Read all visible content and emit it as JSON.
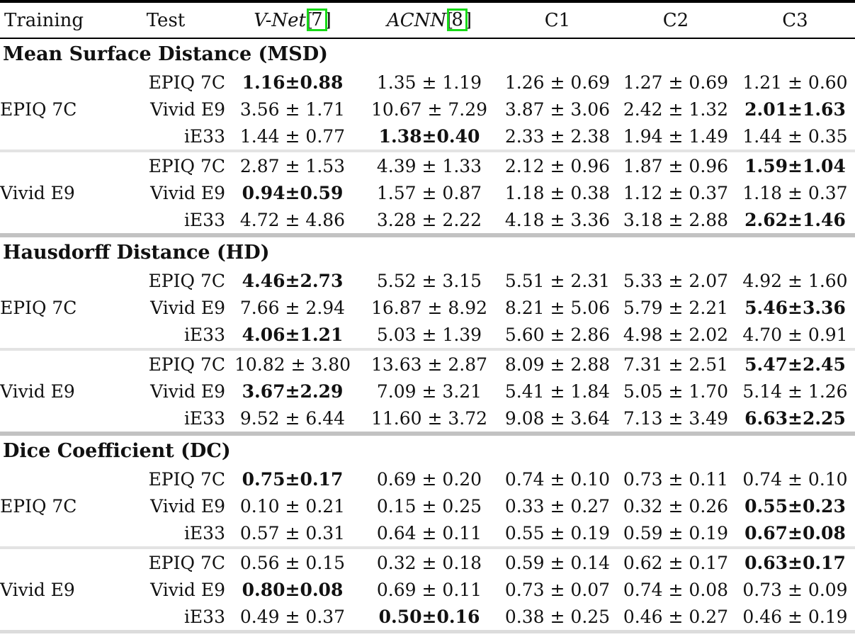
{
  "header": {
    "training": "Training",
    "test": "Test",
    "methods": {
      "vnet": {
        "name": "V-Net",
        "cite": "7"
      },
      "acnn": {
        "name": "ACNN",
        "cite": "8"
      }
    },
    "c1": "C1",
    "c2": "C2",
    "c3": "C3"
  },
  "colors": {
    "citation_box_green": "#17da17",
    "header_rule_black": "#000000",
    "block_separator_gray": "#e3e3e3",
    "section_separator_gray": "#c2c2c2",
    "bottom_rule_gray": "#dcdcdc"
  },
  "sections": [
    {
      "title": "Mean Surface Distance (MSD)",
      "blocks": [
        {
          "training": "EPIQ 7C",
          "rows": [
            {
              "test": "EPIQ 7C",
              "values": [
                {
                  "text": "1.16±0.88",
                  "bold": true
                },
                {
                  "text": "1.35 ± 1.19",
                  "bold": false
                },
                {
                  "text": "1.26 ± 0.69",
                  "bold": false
                },
                {
                  "text": "1.27 ± 0.69",
                  "bold": false
                },
                {
                  "text": "1.21 ± 0.60",
                  "bold": false
                }
              ]
            },
            {
              "test": "Vivid E9",
              "values": [
                {
                  "text": "3.56 ± 1.71",
                  "bold": false
                },
                {
                  "text": "10.67 ± 7.29",
                  "bold": false
                },
                {
                  "text": "3.87 ± 3.06",
                  "bold": false
                },
                {
                  "text": "2.42 ± 1.32",
                  "bold": false
                },
                {
                  "text": "2.01±1.63",
                  "bold": true
                }
              ]
            },
            {
              "test": "iE33",
              "values": [
                {
                  "text": "1.44 ± 0.77",
                  "bold": false
                },
                {
                  "text": "1.38±0.40",
                  "bold": true
                },
                {
                  "text": "2.33 ± 2.38",
                  "bold": false
                },
                {
                  "text": "1.94 ± 1.49",
                  "bold": false
                },
                {
                  "text": "1.44 ± 0.35",
                  "bold": false
                }
              ]
            }
          ]
        },
        {
          "training": "Vivid E9",
          "rows": [
            {
              "test": "EPIQ 7C",
              "values": [
                {
                  "text": "2.87 ± 1.53",
                  "bold": false
                },
                {
                  "text": "4.39 ± 1.33",
                  "bold": false
                },
                {
                  "text": "2.12 ± 0.96",
                  "bold": false
                },
                {
                  "text": "1.87 ± 0.96",
                  "bold": false
                },
                {
                  "text": "1.59±1.04",
                  "bold": true
                }
              ]
            },
            {
              "test": "Vivid E9",
              "values": [
                {
                  "text": "0.94±0.59",
                  "bold": true
                },
                {
                  "text": "1.57 ± 0.87",
                  "bold": false
                },
                {
                  "text": "1.18 ± 0.38",
                  "bold": false
                },
                {
                  "text": "1.12 ± 0.37",
                  "bold": false
                },
                {
                  "text": "1.18 ± 0.37",
                  "bold": false
                }
              ]
            },
            {
              "test": "iE33",
              "values": [
                {
                  "text": "4.72 ± 4.86",
                  "bold": false
                },
                {
                  "text": "3.28 ± 2.22",
                  "bold": false
                },
                {
                  "text": "4.18 ± 3.36",
                  "bold": false
                },
                {
                  "text": "3.18 ± 2.88",
                  "bold": false
                },
                {
                  "text": "2.62±1.46",
                  "bold": true
                }
              ]
            }
          ]
        }
      ]
    },
    {
      "title": "Hausdorff Distance (HD)",
      "blocks": [
        {
          "training": "EPIQ 7C",
          "rows": [
            {
              "test": "EPIQ 7C",
              "values": [
                {
                  "text": "4.46±2.73",
                  "bold": true
                },
                {
                  "text": "5.52 ± 3.15",
                  "bold": false
                },
                {
                  "text": "5.51 ± 2.31",
                  "bold": false
                },
                {
                  "text": "5.33 ± 2.07",
                  "bold": false
                },
                {
                  "text": "4.92 ± 1.60",
                  "bold": false
                }
              ]
            },
            {
              "test": "Vivid E9",
              "values": [
                {
                  "text": "7.66 ± 2.94",
                  "bold": false
                },
                {
                  "text": "16.87 ± 8.92",
                  "bold": false
                },
                {
                  "text": "8.21 ± 5.06",
                  "bold": false
                },
                {
                  "text": "5.79 ± 2.21",
                  "bold": false
                },
                {
                  "text": "5.46±3.36",
                  "bold": true
                }
              ]
            },
            {
              "test": "iE33",
              "values": [
                {
                  "text": "4.06±1.21",
                  "bold": true
                },
                {
                  "text": "5.03 ± 1.39",
                  "bold": false
                },
                {
                  "text": "5.60 ± 2.86",
                  "bold": false
                },
                {
                  "text": "4.98 ± 2.02",
                  "bold": false
                },
                {
                  "text": "4.70 ± 0.91",
                  "bold": false
                }
              ]
            }
          ]
        },
        {
          "training": "Vivid E9",
          "rows": [
            {
              "test": "EPIQ 7C",
              "values": [
                {
                  "text": "10.82 ± 3.80",
                  "bold": false
                },
                {
                  "text": "13.63 ± 2.87",
                  "bold": false
                },
                {
                  "text": "8.09 ± 2.88",
                  "bold": false
                },
                {
                  "text": "7.31 ± 2.51",
                  "bold": false
                },
                {
                  "text": "5.47±2.45",
                  "bold": true
                }
              ]
            },
            {
              "test": "Vivid E9",
              "values": [
                {
                  "text": "3.67±2.29",
                  "bold": true
                },
                {
                  "text": "7.09 ± 3.21",
                  "bold": false
                },
                {
                  "text": "5.41 ± 1.84",
                  "bold": false
                },
                {
                  "text": "5.05 ± 1.70",
                  "bold": false
                },
                {
                  "text": "5.14 ± 1.26",
                  "bold": false
                }
              ]
            },
            {
              "test": "iE33",
              "values": [
                {
                  "text": "9.52 ± 6.44",
                  "bold": false
                },
                {
                  "text": "11.60 ± 3.72",
                  "bold": false
                },
                {
                  "text": "9.08 ± 3.64",
                  "bold": false
                },
                {
                  "text": "7.13 ± 3.49",
                  "bold": false
                },
                {
                  "text": "6.63±2.25",
                  "bold": true
                }
              ]
            }
          ]
        }
      ]
    },
    {
      "title": "Dice Coefficient (DC)",
      "blocks": [
        {
          "training": "EPIQ 7C",
          "rows": [
            {
              "test": "EPIQ 7C",
              "values": [
                {
                  "text": "0.75±0.17",
                  "bold": true
                },
                {
                  "text": "0.69 ± 0.20",
                  "bold": false
                },
                {
                  "text": "0.74 ± 0.10",
                  "bold": false
                },
                {
                  "text": "0.73 ± 0.11",
                  "bold": false
                },
                {
                  "text": "0.74 ± 0.10",
                  "bold": false
                }
              ]
            },
            {
              "test": "Vivid E9",
              "values": [
                {
                  "text": "0.10 ± 0.21",
                  "bold": false
                },
                {
                  "text": "0.15 ± 0.25",
                  "bold": false
                },
                {
                  "text": "0.33 ± 0.27",
                  "bold": false
                },
                {
                  "text": "0.32 ± 0.26",
                  "bold": false
                },
                {
                  "text": "0.55±0.23",
                  "bold": true
                }
              ]
            },
            {
              "test": "iE33",
              "values": [
                {
                  "text": "0.57 ± 0.31",
                  "bold": false
                },
                {
                  "text": "0.64 ± 0.11",
                  "bold": false
                },
                {
                  "text": "0.55 ± 0.19",
                  "bold": false
                },
                {
                  "text": "0.59 ± 0.19",
                  "bold": false
                },
                {
                  "text": "0.67±0.08",
                  "bold": true
                }
              ]
            }
          ]
        },
        {
          "training": "Vivid E9",
          "rows": [
            {
              "test": "EPIQ 7C",
              "values": [
                {
                  "text": "0.56 ± 0.15",
                  "bold": false
                },
                {
                  "text": "0.32 ± 0.18",
                  "bold": false
                },
                {
                  "text": "0.59 ± 0.14",
                  "bold": false
                },
                {
                  "text": "0.62 ± 0.17",
                  "bold": false
                },
                {
                  "text": "0.63±0.17",
                  "bold": true
                }
              ]
            },
            {
              "test": "Vivid E9",
              "values": [
                {
                  "text": "0.80±0.08",
                  "bold": true
                },
                {
                  "text": "0.69 ± 0.11",
                  "bold": false
                },
                {
                  "text": "0.73 ± 0.07",
                  "bold": false
                },
                {
                  "text": "0.74 ± 0.08",
                  "bold": false
                },
                {
                  "text": "0.73 ± 0.09",
                  "bold": false
                }
              ]
            },
            {
              "test": "iE33",
              "values": [
                {
                  "text": "0.49 ± 0.37",
                  "bold": false
                },
                {
                  "text": "0.50±0.16",
                  "bold": true
                },
                {
                  "text": "0.38 ± 0.25",
                  "bold": false
                },
                {
                  "text": "0.46 ± 0.27",
                  "bold": false
                },
                {
                  "text": "0.46 ± 0.19",
                  "bold": false
                }
              ]
            }
          ]
        }
      ]
    }
  ]
}
